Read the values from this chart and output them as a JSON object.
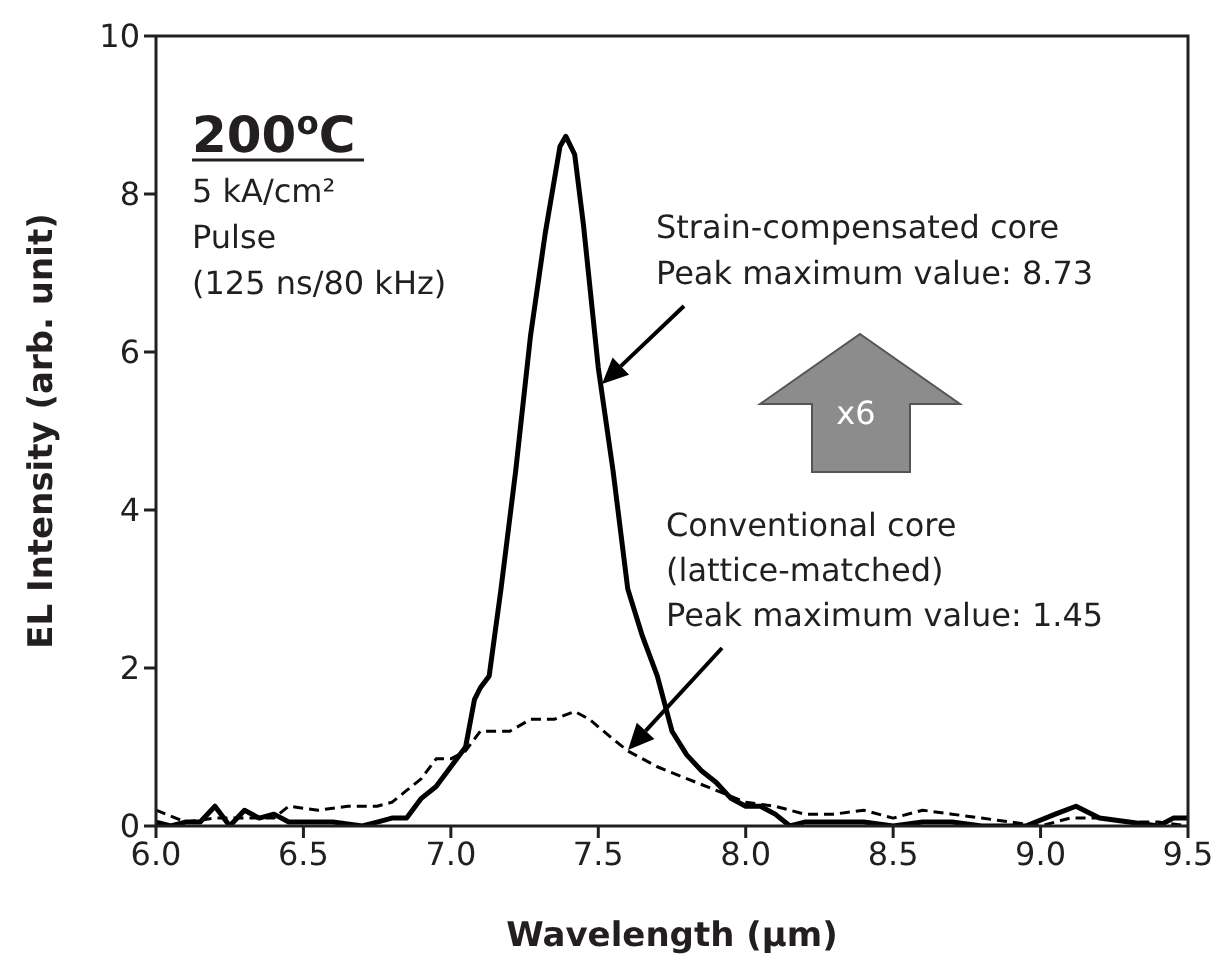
{
  "chart_data": {
    "type": "line",
    "xlabel": "Wavelength (μm)",
    "ylabel": "EL Intensity (arb. unit)",
    "xlim": [
      6.0,
      9.5
    ],
    "xticks": [
      {
        "value": 6,
        "label": "6.0"
      },
      {
        "value": 6.5,
        "label": "6.5"
      },
      {
        "value": 7,
        "label": "7.0"
      },
      {
        "value": 7.5,
        "label": "7.5"
      },
      {
        "value": 8,
        "label": "8.0"
      },
      {
        "value": 8.5,
        "label": "8.5"
      },
      {
        "value": 9,
        "label": "9.0"
      },
      {
        "value": 9.5,
        "label": "9.5"
      }
    ],
    "ylim": [
      0,
      10
    ],
    "yticks": [
      0,
      2,
      4,
      6,
      8,
      10
    ],
    "marker": "none",
    "series": [
      {
        "color": "#000000",
        "line_style": "solid",
        "x": [
          6.0,
          6.05,
          6.1,
          6.15,
          6.2,
          6.25,
          6.3,
          6.35,
          6.4,
          6.45,
          6.5,
          6.6,
          6.7,
          6.75,
          6.8,
          6.85,
          6.9,
          6.95,
          7.0,
          7.05,
          7.08,
          7.1,
          7.13,
          7.17,
          7.22,
          7.27,
          7.32,
          7.37,
          7.39,
          7.42,
          7.45,
          7.5,
          7.55,
          7.6,
          7.65,
          7.7,
          7.75,
          7.8,
          7.85,
          7.9,
          7.95,
          8.0,
          8.05,
          8.1,
          8.15,
          8.2,
          8.3,
          8.4,
          8.5,
          8.6,
          8.7,
          8.8,
          8.95,
          9.05,
          9.12,
          9.2,
          9.3,
          9.4,
          9.45,
          9.5
        ],
        "values": [
          0.05,
          0.0,
          0.05,
          0.05,
          0.25,
          0.0,
          0.2,
          0.1,
          0.15,
          0.05,
          0.05,
          0.05,
          0.0,
          0.05,
          0.1,
          0.1,
          0.35,
          0.5,
          0.75,
          1.0,
          1.6,
          1.75,
          1.9,
          3.0,
          4.5,
          6.2,
          7.5,
          8.6,
          8.73,
          8.5,
          7.6,
          5.8,
          4.5,
          3.0,
          2.4,
          1.9,
          1.2,
          0.9,
          0.7,
          0.55,
          0.35,
          0.25,
          0.25,
          0.15,
          0.0,
          0.05,
          0.05,
          0.05,
          0.0,
          0.05,
          0.05,
          0.0,
          0.0,
          0.15,
          0.25,
          0.1,
          0.05,
          0.0,
          0.1,
          0.1
        ]
      },
      {
        "color": "#000000",
        "line_style": "dashed",
        "x": [
          6.0,
          6.1,
          6.2,
          6.3,
          6.4,
          6.45,
          6.55,
          6.65,
          6.75,
          6.8,
          6.85,
          6.9,
          6.95,
          7.0,
          7.05,
          7.1,
          7.2,
          7.27,
          7.35,
          7.42,
          7.47,
          7.55,
          7.6,
          7.7,
          7.8,
          7.9,
          8.0,
          8.1,
          8.2,
          8.3,
          8.4,
          8.5,
          8.6,
          8.7,
          8.8,
          8.9,
          9.0,
          9.1,
          9.2,
          9.3,
          9.4,
          9.5
        ],
        "values": [
          0.2,
          0.05,
          0.1,
          0.1,
          0.1,
          0.25,
          0.2,
          0.25,
          0.25,
          0.3,
          0.45,
          0.6,
          0.85,
          0.85,
          0.95,
          1.2,
          1.2,
          1.35,
          1.35,
          1.45,
          1.35,
          1.1,
          0.95,
          0.75,
          0.6,
          0.45,
          0.3,
          0.25,
          0.15,
          0.15,
          0.2,
          0.1,
          0.2,
          0.15,
          0.1,
          0.05,
          0.0,
          0.1,
          0.1,
          0.05,
          0.05,
          0.0
        ]
      }
    ],
    "annotations": [
      "200$^{o}$C",
      "5 kA/cm²",
      "Pulse",
      "(125 ns/80 kHz)",
      "Strain-compensated core\nPeak maximum value: 8.73",
      "Conventional core\n(lattice-matched)\nPeak maximum value: 1.45",
      "x6"
    ]
  }
}
